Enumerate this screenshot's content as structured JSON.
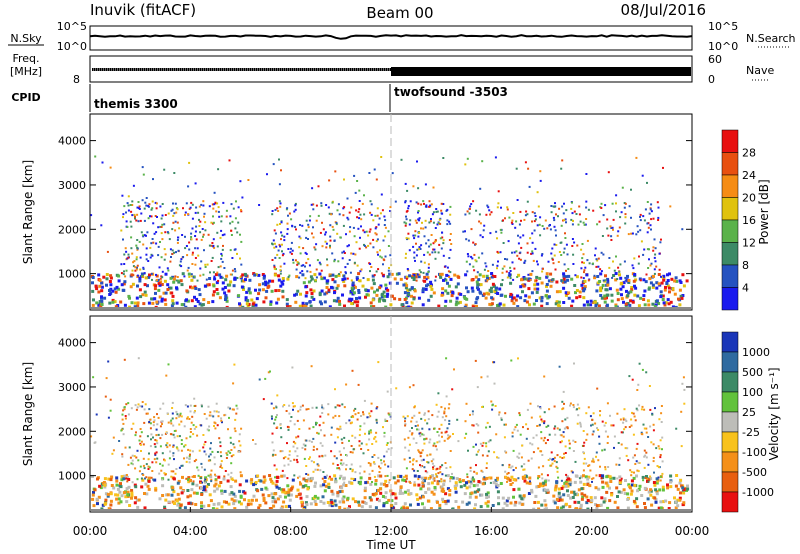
{
  "header": {
    "station": "Inuvik (fitACF)",
    "beam": "Beam 00",
    "date": "08/Jul/2016"
  },
  "side_labels": {
    "nsky": "N.Sky",
    "freq_line1": "Freq.",
    "freq_line2": "[MHz]",
    "cpid": "CPID",
    "nsearch": "N.Search",
    "nave": "Nave"
  },
  "cpid_segments": [
    {
      "label": "themis 3300",
      "start_hour": 0
    },
    {
      "label": "twofsound -3503",
      "start_hour": 12
    }
  ],
  "chart_data": [
    {
      "type": "line",
      "name": "noise",
      "left_ticks": [
        "10^5",
        "10^0"
      ],
      "right_ticks": [
        "10^5",
        "10^0"
      ],
      "x_range_hours": [
        0,
        24
      ]
    },
    {
      "type": "line",
      "name": "frequency",
      "left_ticks": [
        "8"
      ],
      "right_ticks": [
        "60",
        "0"
      ],
      "x_range_hours": [
        0,
        24
      ]
    },
    {
      "type": "heatmap",
      "name": "power",
      "ylabel": "Slant Range [km]",
      "ylim": [
        180,
        4600
      ],
      "yticks": [
        1000,
        2000,
        3000,
        4000
      ],
      "x_range_hours": [
        0,
        24
      ],
      "colorbar_label": "Power [dB]",
      "colorbar_ticks": [
        "4",
        "8",
        "12",
        "16",
        "20",
        "24",
        "28"
      ],
      "colors": [
        "#1a1aee",
        "#2552c0",
        "#3c8a66",
        "#5ab24a",
        "#e0c20e",
        "#f58c14",
        "#e85010",
        "#e81010"
      ]
    },
    {
      "type": "heatmap",
      "name": "velocity",
      "ylabel": "Slant Range [km]",
      "ylim": [
        180,
        4600
      ],
      "yticks": [
        1000,
        2000,
        3000,
        4000
      ],
      "x_range_hours": [
        0,
        24
      ],
      "xlabel": "Time UT",
      "xticks": [
        "00:00",
        "04:00",
        "08:00",
        "12:00",
        "16:00",
        "20:00",
        "00:00"
      ],
      "colorbar_label": "Velocity [m s⁻¹]",
      "colorbar_ticks": [
        "1000",
        "500",
        "100",
        "25",
        "-25",
        "-100",
        "-500",
        "-1000"
      ],
      "colors": [
        "#1a36b8",
        "#2f6aa0",
        "#3c8a66",
        "#62c23c",
        "#bdbdb8",
        "#f8c21c",
        "#f4901a",
        "#e85f10",
        "#e81010"
      ]
    }
  ]
}
